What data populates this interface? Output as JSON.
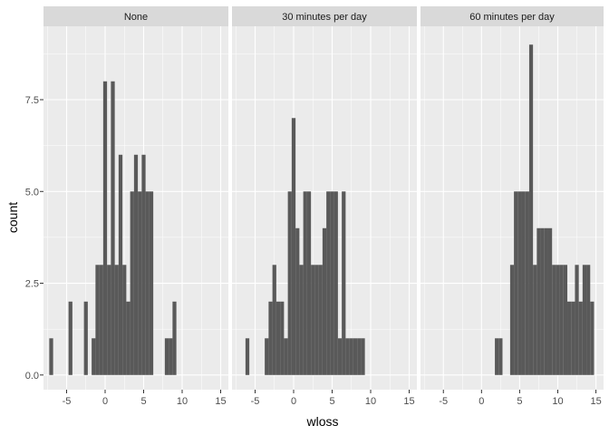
{
  "chart_data": {
    "type": "bar",
    "subtype": "faceted-histogram",
    "xlabel": "wloss",
    "ylabel": "count",
    "xlim": [
      -8,
      16
    ],
    "ylim": [
      0,
      9
    ],
    "x_ticks": [
      -5,
      0,
      5,
      10,
      15
    ],
    "y_ticks": [
      0,
      2.5,
      5,
      7.5
    ],
    "y_tick_labels": [
      "0.0",
      "2.5",
      "5.0",
      "7.5"
    ],
    "bin_width": 0.5,
    "grid": true,
    "colors": {
      "bar": "#595959",
      "panel_bg": "#ebebeb",
      "strip_bg": "#d9d9d9",
      "grid": "#ffffff"
    },
    "facets": [
      {
        "label": "None",
        "bars": [
          {
            "x": -7.0,
            "count": 1
          },
          {
            "x": -4.5,
            "count": 2
          },
          {
            "x": -2.5,
            "count": 2
          },
          {
            "x": -1.5,
            "count": 1
          },
          {
            "x": -1.0,
            "count": 3
          },
          {
            "x": -0.5,
            "count": 3
          },
          {
            "x": 0.0,
            "count": 8
          },
          {
            "x": 0.5,
            "count": 3
          },
          {
            "x": 1.0,
            "count": 8
          },
          {
            "x": 1.5,
            "count": 3
          },
          {
            "x": 2.0,
            "count": 6
          },
          {
            "x": 2.5,
            "count": 3
          },
          {
            "x": 3.0,
            "count": 2
          },
          {
            "x": 3.5,
            "count": 5
          },
          {
            "x": 4.0,
            "count": 6
          },
          {
            "x": 4.5,
            "count": 5
          },
          {
            "x": 5.0,
            "count": 6
          },
          {
            "x": 5.5,
            "count": 5
          },
          {
            "x": 6.0,
            "count": 5
          },
          {
            "x": 8.0,
            "count": 1
          },
          {
            "x": 8.5,
            "count": 1
          },
          {
            "x": 9.0,
            "count": 2
          }
        ]
      },
      {
        "label": "30 minutes per day",
        "bars": [
          {
            "x": -6.0,
            "count": 1
          },
          {
            "x": -3.5,
            "count": 1
          },
          {
            "x": -3.0,
            "count": 2
          },
          {
            "x": -2.5,
            "count": 3
          },
          {
            "x": -2.0,
            "count": 2
          },
          {
            "x": -1.5,
            "count": 2
          },
          {
            "x": -1.0,
            "count": 1
          },
          {
            "x": -0.5,
            "count": 5
          },
          {
            "x": 0.0,
            "count": 7
          },
          {
            "x": 0.5,
            "count": 4
          },
          {
            "x": 1.0,
            "count": 3
          },
          {
            "x": 1.5,
            "count": 5
          },
          {
            "x": 2.0,
            "count": 5
          },
          {
            "x": 2.5,
            "count": 3
          },
          {
            "x": 3.0,
            "count": 3
          },
          {
            "x": 3.5,
            "count": 3
          },
          {
            "x": 4.0,
            "count": 4
          },
          {
            "x": 4.5,
            "count": 5
          },
          {
            "x": 5.0,
            "count": 5
          },
          {
            "x": 5.5,
            "count": 5
          },
          {
            "x": 6.0,
            "count": 1
          },
          {
            "x": 6.5,
            "count": 5
          },
          {
            "x": 7.0,
            "count": 1
          },
          {
            "x": 7.5,
            "count": 1
          },
          {
            "x": 8.0,
            "count": 1
          },
          {
            "x": 8.5,
            "count": 1
          },
          {
            "x": 9.0,
            "count": 1
          }
        ]
      },
      {
        "label": "60 minutes per day",
        "bars": [
          {
            "x": 2.0,
            "count": 1
          },
          {
            "x": 2.5,
            "count": 1
          },
          {
            "x": 4.0,
            "count": 3
          },
          {
            "x": 4.5,
            "count": 5
          },
          {
            "x": 5.0,
            "count": 5
          },
          {
            "x": 5.5,
            "count": 5
          },
          {
            "x": 6.0,
            "count": 5
          },
          {
            "x": 6.5,
            "count": 9
          },
          {
            "x": 7.0,
            "count": 3
          },
          {
            "x": 7.5,
            "count": 4
          },
          {
            "x": 8.0,
            "count": 4
          },
          {
            "x": 8.5,
            "count": 4
          },
          {
            "x": 9.0,
            "count": 4
          },
          {
            "x": 9.5,
            "count": 3
          },
          {
            "x": 10.0,
            "count": 3
          },
          {
            "x": 10.5,
            "count": 3
          },
          {
            "x": 11.0,
            "count": 3
          },
          {
            "x": 11.5,
            "count": 2
          },
          {
            "x": 12.0,
            "count": 2
          },
          {
            "x": 12.5,
            "count": 3
          },
          {
            "x": 13.0,
            "count": 2
          },
          {
            "x": 13.5,
            "count": 3
          },
          {
            "x": 14.0,
            "count": 3
          },
          {
            "x": 14.5,
            "count": 2
          }
        ]
      }
    ]
  }
}
